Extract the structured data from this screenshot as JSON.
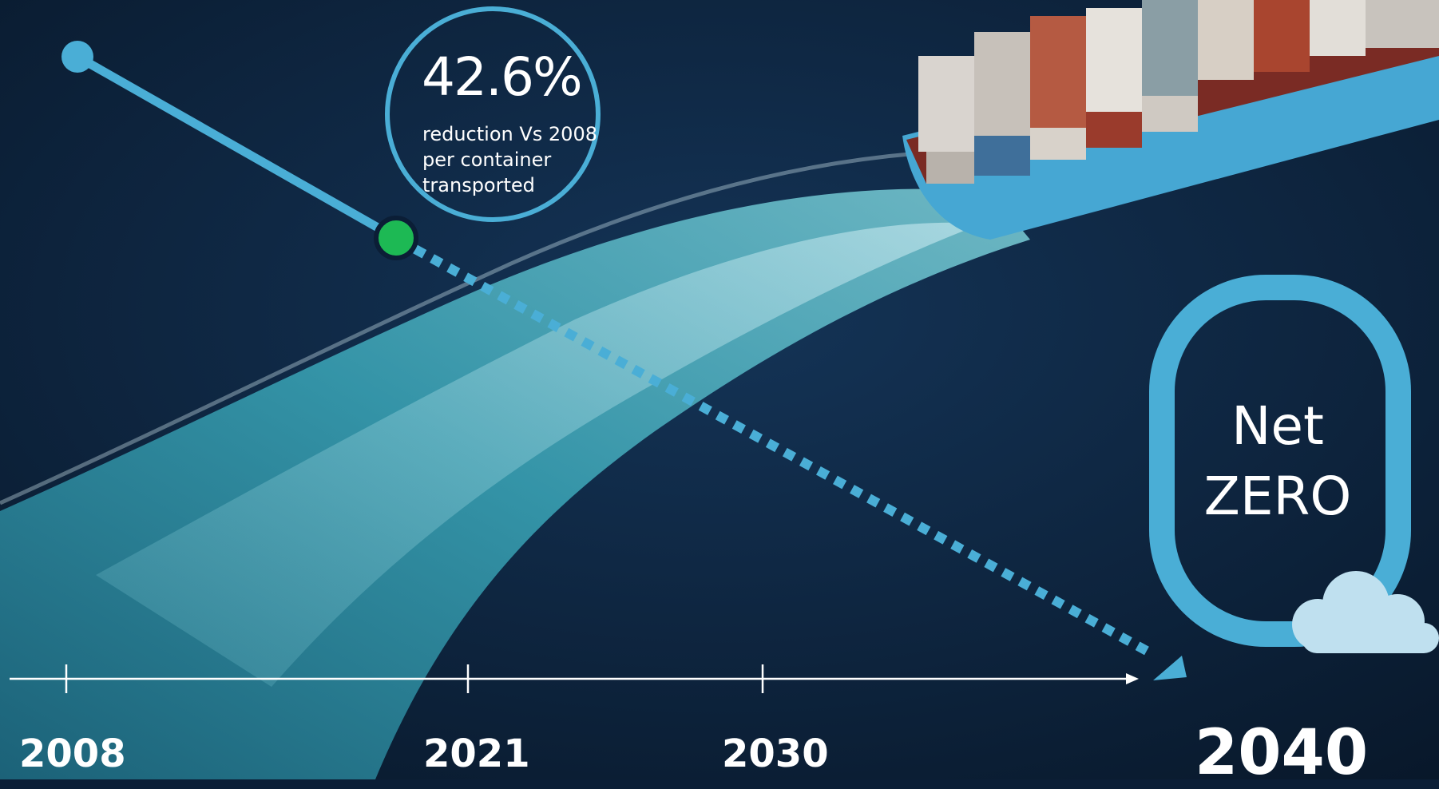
{
  "stat": {
    "value": "42.6%",
    "caption_lines": [
      "reduction Vs 2008",
      "per container",
      "transported"
    ]
  },
  "goal": {
    "line1": "Net",
    "line2": "ZERO",
    "year": "2040"
  },
  "timeline": {
    "years": [
      "2008",
      "2021",
      "2030"
    ]
  },
  "colors": {
    "accent": "#4aaed6",
    "current_point": "#1db954",
    "sea": "#0b1e36",
    "wake": "#2f8fa3",
    "cloud": "#bfe0ef"
  },
  "icons": [
    "cloud-icon",
    "arrow-head-icon"
  ]
}
